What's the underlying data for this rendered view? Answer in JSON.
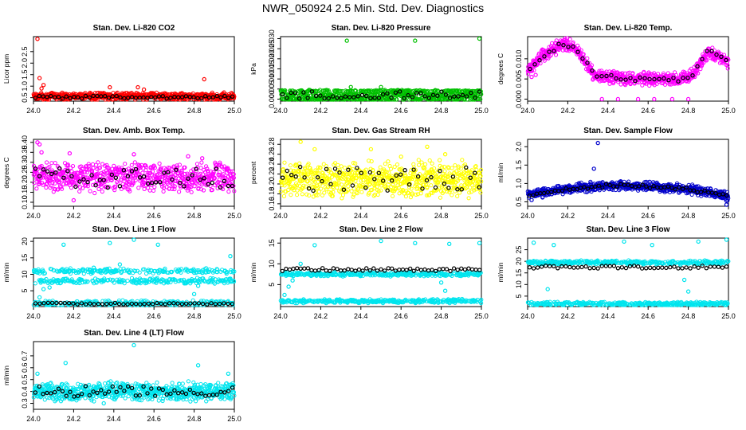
{
  "figure": {
    "title": "NWR_050924  2.5 Min. Std. Dev. Diagnostics"
  },
  "colors": {
    "panel_border": "#000000",
    "axis": "#000000",
    "overlay": "#000000"
  },
  "chart_data": [
    {
      "type": "scatter",
      "title": "Stan. Dev. Li-820 CO2",
      "ylabel": "Licor ppm",
      "xlim": [
        24.0,
        25.0
      ],
      "ylim": [
        0.35,
        3.15
      ],
      "xticks": [
        24.0,
        24.2,
        24.4,
        24.6,
        24.8,
        25.0
      ],
      "xtick_labels": [
        "24.0",
        "24.2",
        "24.4",
        "24.6",
        "24.8",
        "25.0"
      ],
      "yticks": [
        0.5,
        1.0,
        1.5,
        2.0,
        2.5
      ],
      "ytick_labels": [
        "0.5",
        "1.0",
        "1.5",
        "2.0",
        "2.5"
      ],
      "color": "#ff0000",
      "model": {
        "kind": "flat",
        "base": 0.56,
        "spread": 0.11
      },
      "outliers": [
        [
          24.02,
          3.05
        ],
        [
          24.03,
          1.35
        ],
        [
          24.05,
          1.05
        ],
        [
          24.04,
          0.9
        ],
        [
          24.38,
          0.95
        ],
        [
          24.55,
          0.85
        ],
        [
          24.85,
          1.3
        ],
        [
          24.52,
          0.95
        ]
      ],
      "overlay": {
        "base": 0.52,
        "spread": 0.06,
        "n": 52
      }
    },
    {
      "type": "scatter",
      "title": "Stan. Dev. Li-820 Pressure",
      "ylabel": "kPa",
      "xlim": [
        24.0,
        25.0
      ],
      "ylim": [
        -0.001,
        0.031
      ],
      "xticks": [
        24.0,
        24.2,
        24.4,
        24.6,
        24.8,
        25.0
      ],
      "xtick_labels": [
        "24.0",
        "24.2",
        "24.4",
        "24.6",
        "24.8",
        "25.0"
      ],
      "yticks": [
        0.0,
        0.005,
        0.01,
        0.015,
        0.02,
        0.025,
        0.03
      ],
      "ytick_labels": [
        "0.000",
        "0.005",
        "0.010",
        "0.015",
        "0.020",
        "0.025",
        "0.030"
      ],
      "color": "#00c000",
      "model": {
        "kind": "levels",
        "levels": [
          0.0,
          0.002,
          0.004
        ],
        "spread": 0.0004
      },
      "outliers": [
        [
          24.33,
          0.029
        ],
        [
          24.67,
          0.029
        ],
        [
          24.99,
          0.03
        ],
        [
          24.35,
          0.006
        ],
        [
          24.5,
          0.006
        ]
      ],
      "overlay": {
        "base": 0.002,
        "spread": 0.0018,
        "n": 48
      }
    },
    {
      "type": "scatter",
      "title": "Stan. Dev. Li-820 Temp.",
      "ylabel": "degrees C",
      "xlim": [
        24.0,
        25.0
      ],
      "ylim": [
        -0.0005,
        0.0155
      ],
      "xticks": [
        24.0,
        24.2,
        24.4,
        24.6,
        24.8,
        25.0
      ],
      "xtick_labels": [
        "24.0",
        "24.2",
        "24.4",
        "24.6",
        "24.8",
        "25.0"
      ],
      "yticks": [
        0.0,
        0.005,
        0.01
      ],
      "ytick_labels": [
        "0.000",
        "0.005",
        "0.010"
      ],
      "color": "#ff00ff",
      "model": {
        "kind": "curve",
        "pts": [
          [
            24.0,
            0.007
          ],
          [
            24.08,
            0.011
          ],
          [
            24.18,
            0.014
          ],
          [
            24.25,
            0.012
          ],
          [
            24.33,
            0.006
          ],
          [
            24.5,
            0.005
          ],
          [
            24.6,
            0.005
          ],
          [
            24.75,
            0.005
          ],
          [
            24.82,
            0.006
          ],
          [
            24.9,
            0.012
          ],
          [
            25.0,
            0.009
          ]
        ],
        "spread": 0.0012
      },
      "outliers": [
        [
          24.02,
          0.0055
        ],
        [
          24.04,
          0.006
        ],
        [
          24.37,
          0.0
        ],
        [
          24.45,
          0.0
        ],
        [
          24.55,
          0.0
        ],
        [
          24.63,
          0.0
        ],
        [
          24.72,
          0.0
        ],
        [
          24.8,
          0.0
        ]
      ],
      "overlay": {
        "follow": true,
        "spread": 0.0006,
        "n": 42
      }
    },
    {
      "type": "scatter",
      "title": "Stan. Dev. Amb. Box Temp.",
      "ylabel": "degrees C",
      "xlim": [
        24.0,
        25.0
      ],
      "ylim": [
        0.08,
        0.415
      ],
      "xticks": [
        24.0,
        24.2,
        24.4,
        24.6,
        24.8,
        25.0
      ],
      "xtick_labels": [
        "24.0",
        "24.2",
        "24.4",
        "24.6",
        "24.8",
        "25.0"
      ],
      "yticks": [
        0.1,
        0.15,
        0.2,
        0.25,
        0.3,
        0.35,
        0.4
      ],
      "ytick_labels": [
        "0.10",
        "0.15",
        "0.20",
        "0.25",
        "0.30",
        "0.35",
        "0.40"
      ],
      "color": "#ff00ff",
      "model": {
        "kind": "flat",
        "base": 0.225,
        "spread": 0.05
      },
      "outliers": [
        [
          24.02,
          0.4
        ],
        [
          24.03,
          0.39
        ],
        [
          24.04,
          0.35
        ],
        [
          24.18,
          0.345
        ],
        [
          24.5,
          0.34
        ],
        [
          24.2,
          0.11
        ],
        [
          24.77,
          0.33
        ],
        [
          24.84,
          0.32
        ]
      ],
      "overlay": {
        "base": 0.22,
        "spread": 0.05,
        "n": 50
      }
    },
    {
      "type": "scatter",
      "title": "Stan. Dev. Gas Stream RH",
      "ylabel": "percent",
      "xlim": [
        24.0,
        25.0
      ],
      "ylim": [
        0.155,
        0.29
      ],
      "xticks": [
        24.0,
        24.2,
        24.4,
        24.6,
        24.8,
        25.0
      ],
      "xtick_labels": [
        "24.0",
        "24.2",
        "24.4",
        "24.6",
        "24.8",
        "25.0"
      ],
      "yticks": [
        0.16,
        0.18,
        0.2,
        0.22,
        0.24,
        0.26,
        0.28
      ],
      "ytick_labels": [
        "0.16",
        "0.18",
        "0.20",
        "0.22",
        "0.24",
        "0.26",
        "0.28"
      ],
      "color": "#ffff00",
      "model": {
        "kind": "flat",
        "base": 0.21,
        "spread": 0.025
      },
      "outliers": [
        [
          24.1,
          0.285
        ],
        [
          24.17,
          0.27
        ],
        [
          24.45,
          0.27
        ],
        [
          24.73,
          0.275
        ],
        [
          24.82,
          0.26
        ],
        [
          24.6,
          0.255
        ]
      ],
      "overlay": {
        "base": 0.21,
        "spread": 0.025,
        "n": 46
      }
    },
    {
      "type": "scatter",
      "title": "Stan. Dev. Sample Flow",
      "ylabel": "ml/min",
      "xlim": [
        24.0,
        25.0
      ],
      "ylim": [
        0.38,
        2.2
      ],
      "xticks": [
        24.0,
        24.2,
        24.4,
        24.6,
        24.8,
        25.0
      ],
      "xtick_labels": [
        "24.0",
        "24.2",
        "24.4",
        "24.6",
        "24.8",
        "25.0"
      ],
      "yticks": [
        0.5,
        1.0,
        1.5,
        2.0
      ],
      "ytick_labels": [
        "0.5",
        "1.0",
        "1.5",
        "2.0"
      ],
      "color": "#0000cc",
      "model": {
        "kind": "curve",
        "pts": [
          [
            24.0,
            0.7
          ],
          [
            24.2,
            0.85
          ],
          [
            24.4,
            0.95
          ],
          [
            24.6,
            0.92
          ],
          [
            24.8,
            0.85
          ],
          [
            25.0,
            0.65
          ]
        ],
        "spread": 0.09
      },
      "outliers": [
        [
          24.35,
          2.1
        ],
        [
          24.33,
          1.4
        ],
        [
          24.99,
          0.42
        ],
        [
          24.02,
          0.55
        ]
      ],
      "overlay": {
        "follow": true,
        "spread": 0.05,
        "n": 55
      }
    },
    {
      "type": "scatter",
      "title": "Stan. Dev. Line 1 Flow",
      "ylabel": "ml/min",
      "xlim": [
        24.0,
        25.0
      ],
      "ylim": [
        0.2,
        21.0
      ],
      "xticks": [
        24.0,
        24.2,
        24.4,
        24.6,
        24.8,
        25.0
      ],
      "xtick_labels": [
        "24.0",
        "24.2",
        "24.4",
        "24.6",
        "24.8",
        "25.0"
      ],
      "yticks": [
        5,
        10,
        15,
        20
      ],
      "ytick_labels": [
        "5",
        "10",
        "15",
        "20"
      ],
      "color": "#00e5ee",
      "model": {
        "kind": "levels",
        "levels": [
          8.0,
          11.0,
          1.2
        ],
        "spread": 0.6
      },
      "outliers": [
        [
          24.15,
          19.0
        ],
        [
          24.38,
          19.5
        ],
        [
          24.5,
          20.5
        ],
        [
          24.62,
          19.0
        ],
        [
          24.98,
          15.5
        ],
        [
          24.03,
          3.0
        ],
        [
          24.05,
          5.5
        ],
        [
          24.08,
          6.0
        ],
        [
          24.8,
          4.0
        ],
        [
          24.82,
          6.5
        ],
        [
          24.27,
          11.5
        ],
        [
          24.3,
          12.0
        ],
        [
          24.43,
          13.0
        ]
      ],
      "overlay": {
        "base": 1.1,
        "spread": 0.25,
        "n": 48
      }
    },
    {
      "type": "scatter",
      "title": "Stan. Dev. Line 2 Flow",
      "ylabel": "ml/min",
      "xlim": [
        24.0,
        25.0
      ],
      "ylim": [
        -0.3,
        16.2
      ],
      "xticks": [
        24.0,
        24.2,
        24.4,
        24.6,
        24.8,
        25.0
      ],
      "xtick_labels": [
        "24.0",
        "24.2",
        "24.4",
        "24.6",
        "24.8",
        "25.0"
      ],
      "yticks": [
        5,
        10,
        15
      ],
      "ytick_labels": [
        "5",
        "10",
        "15"
      ],
      "color": "#00e5ee",
      "model": {
        "kind": "levels",
        "levels": [
          7.5,
          1.0
        ],
        "spread": 0.35
      },
      "outliers": [
        [
          24.17,
          14.5
        ],
        [
          24.5,
          15.5
        ],
        [
          24.67,
          15.0
        ],
        [
          24.84,
          14.8
        ],
        [
          24.99,
          15.0
        ],
        [
          24.02,
          2.5
        ],
        [
          24.04,
          4.5
        ],
        [
          24.06,
          6.0
        ],
        [
          24.8,
          5.5
        ],
        [
          24.82,
          3.5
        ],
        [
          24.1,
          10.0
        ]
      ],
      "overlay": {
        "base": 8.6,
        "spread": 0.35,
        "n": 55
      }
    },
    {
      "type": "scatter",
      "title": "Stan. Dev. Line 3 Flow",
      "ylabel": "ml/min",
      "xlim": [
        24.0,
        25.0
      ],
      "ylim": [
        0.5,
        30.0
      ],
      "xticks": [
        24.0,
        24.2,
        24.4,
        24.6,
        24.8,
        25.0
      ],
      "xtick_labels": [
        "24.0",
        "24.2",
        "24.4",
        "24.6",
        "24.8",
        "25.0"
      ],
      "yticks": [
        5,
        10,
        15,
        20,
        25
      ],
      "ytick_labels": [
        "5",
        "10",
        "15",
        "20",
        "25"
      ],
      "color": "#00e5ee",
      "model": {
        "kind": "levels",
        "levels": [
          19.5,
          1.7
        ],
        "spread": 0.6
      },
      "outliers": [
        [
          24.03,
          28.0
        ],
        [
          24.1,
          8.0
        ],
        [
          24.13,
          27.0
        ],
        [
          24.48,
          28.5
        ],
        [
          24.62,
          27.0
        ],
        [
          24.85,
          28.5
        ],
        [
          24.99,
          29.5
        ],
        [
          24.78,
          12.0
        ],
        [
          24.8,
          7.0
        ]
      ],
      "overlay": {
        "base": 17.5,
        "spread": 0.6,
        "n": 50
      }
    },
    {
      "type": "scatter",
      "title": "Stan. Dev. Line 4 (LT) Flow",
      "ylabel": "ml/min",
      "xlim": [
        24.0,
        25.0
      ],
      "ylim": [
        0.25,
        0.82
      ],
      "xticks": [
        24.0,
        24.2,
        24.4,
        24.6,
        24.8,
        25.0
      ],
      "xtick_labels": [
        "24.0",
        "24.2",
        "24.4",
        "24.6",
        "24.8",
        "25.0"
      ],
      "yticks": [
        0.3,
        0.4,
        0.5,
        0.6,
        0.7
      ],
      "ytick_labels": [
        "0.3",
        "0.4",
        "0.5",
        "0.6",
        "0.7"
      ],
      "color": "#00e5ee",
      "model": {
        "kind": "flat",
        "base": 0.4,
        "spread": 0.055
      },
      "outliers": [
        [
          24.02,
          0.55
        ],
        [
          24.16,
          0.64
        ],
        [
          24.5,
          0.79
        ],
        [
          24.82,
          0.62
        ],
        [
          24.35,
          0.3
        ],
        [
          24.97,
          0.55
        ]
      ],
      "overlay": {
        "base": 0.4,
        "spread": 0.045,
        "n": 52
      }
    }
  ]
}
